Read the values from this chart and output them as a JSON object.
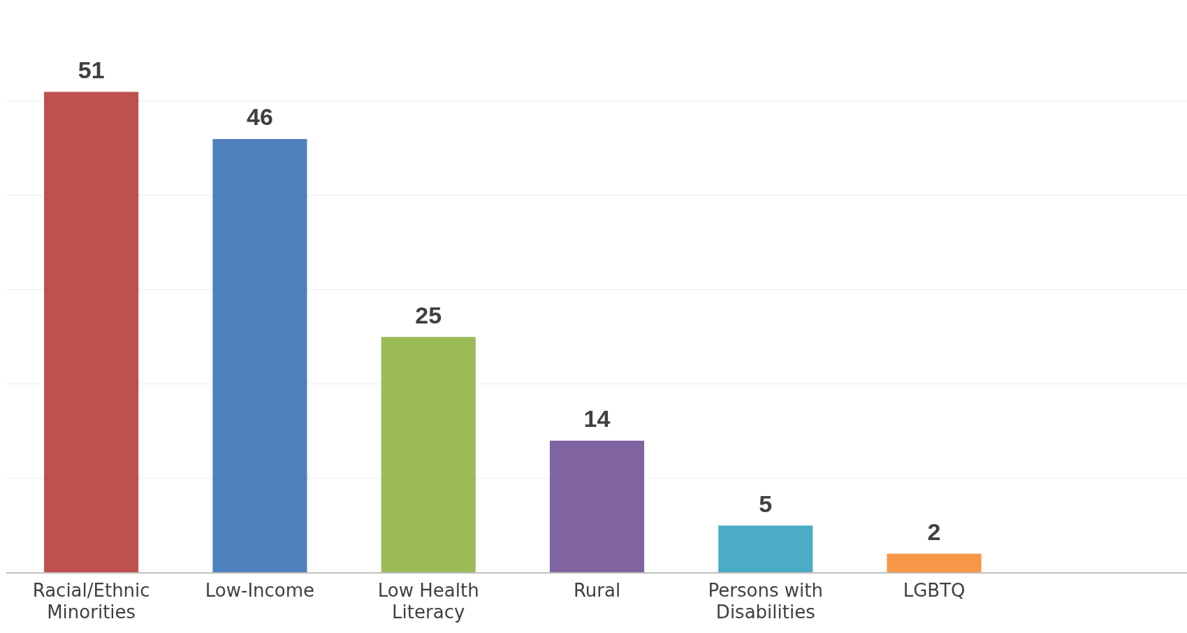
{
  "chart_data": {
    "type": "bar",
    "categories": [
      "Racial/Ethnic Minorities",
      "Low-Income",
      "Low Health Literacy",
      "Rural",
      "Persons with Disabilities",
      "LGBTQ",
      null
    ],
    "values": [
      51,
      46,
      25,
      14,
      5,
      2,
      null
    ],
    "colors": [
      "#c0504d",
      "#4f81bd",
      "#9bbb59",
      "#8064a2",
      "#4bacc6",
      "#f79646",
      "#4bacc6"
    ],
    "yticks": [
      {
        "value": 0,
        "label": null
      },
      {
        "value": 10,
        "label": null
      },
      {
        "value": 20,
        "label": null
      },
      {
        "value": 30,
        "label": null
      },
      {
        "value": 40,
        "label": null
      },
      {
        "value": 50,
        "label": null
      }
    ],
    "grid": "y",
    "tick_labels": "x",
    "data_labels": true,
    "legend": false
  }
}
